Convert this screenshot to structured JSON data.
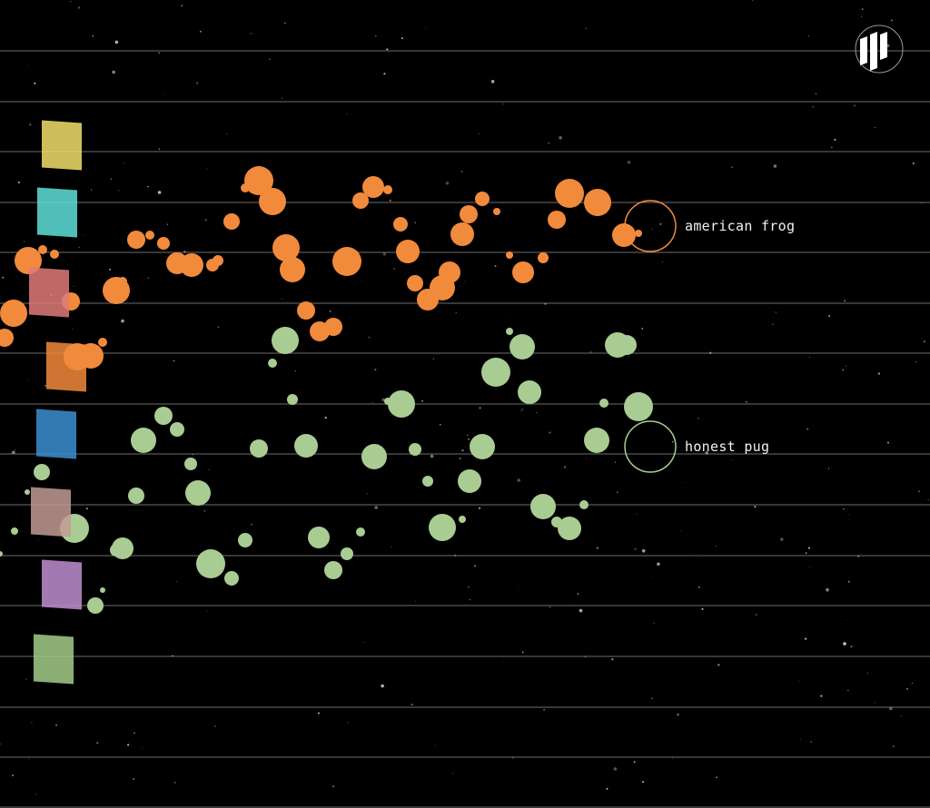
{
  "colors": {
    "background": "#000000",
    "stripe": "#8a8a8a",
    "orange": "#f28a3c",
    "green": "#a9cc92"
  },
  "logo": {
    "icon": "bars-logo-icon"
  },
  "legend": {
    "swatches": [
      {
        "color": "#f1df6b"
      },
      {
        "color": "#5ee0da"
      },
      {
        "color": "#e07a7a"
      },
      {
        "color": "#f28a3c"
      },
      {
        "color": "#3b8fd0"
      },
      {
        "color": "#c29b93"
      },
      {
        "color": "#c08ed0"
      },
      {
        "color": "#a3cc8a"
      }
    ]
  },
  "groups": [
    {
      "label": "american frog",
      "color": "#f28a3c"
    },
    {
      "label": "honest pug",
      "color": "#a9cc92"
    }
  ],
  "chart_data": {
    "type": "scatter",
    "series": [
      {
        "label_ref": "american frog",
        "color": "#f28a3c",
        "values": [
          [
            285,
            199,
            16
          ],
          [
            300,
            222,
            15
          ],
          [
            270,
            207,
            5
          ],
          [
            255,
            244,
            9
          ],
          [
            315,
            273,
            15
          ],
          [
            322,
            297,
            14
          ],
          [
            382,
            288,
            16
          ],
          [
            337,
            342,
            10
          ],
          [
            352,
            365,
            11
          ],
          [
            367,
            360,
            10
          ],
          [
            411,
            206,
            12
          ],
          [
            397,
            221,
            9
          ],
          [
            427,
            209,
            5
          ],
          [
            441,
            247,
            8
          ],
          [
            449,
            277,
            13
          ],
          [
            457,
            312,
            9
          ],
          [
            471,
            330,
            12
          ],
          [
            487,
            317,
            14
          ],
          [
            495,
            300,
            12
          ],
          [
            509,
            258,
            13
          ],
          [
            516,
            236,
            10
          ],
          [
            531,
            219,
            8
          ],
          [
            547,
            233,
            4
          ],
          [
            576,
            300,
            12
          ],
          [
            598,
            284,
            6
          ],
          [
            561,
            281,
            4
          ],
          [
            613,
            242,
            10
          ],
          [
            627,
            213,
            16
          ],
          [
            658,
            223,
            15
          ],
          [
            687,
            259,
            13
          ],
          [
            703,
            257,
            4
          ],
          [
            150,
            264,
            10
          ],
          [
            165,
            259,
            5
          ],
          [
            180,
            268,
            7
          ],
          [
            195,
            290,
            12
          ],
          [
            211,
            292,
            13
          ],
          [
            234,
            292,
            7
          ],
          [
            240,
            287,
            6
          ],
          [
            128,
            320,
            15
          ],
          [
            135,
            310,
            5
          ],
          [
            31,
            287,
            15
          ],
          [
            47,
            275,
            5
          ],
          [
            60,
            280,
            5
          ],
          [
            15,
            345,
            15
          ],
          [
            5,
            372,
            10
          ],
          [
            78,
            332,
            10
          ],
          [
            85,
            393,
            15
          ],
          [
            100,
            392,
            14
          ],
          [
            113,
            377,
            5
          ]
        ]
      },
      {
        "label_ref": "honest pug",
        "color": "#a9cc92",
        "values": [
          [
            314,
            375,
            15
          ],
          [
            300,
            400,
            5
          ],
          [
            322,
            440,
            6
          ],
          [
            285,
            494,
            10
          ],
          [
            337,
            491,
            13
          ],
          [
            180,
            458,
            10
          ],
          [
            195,
            473,
            8
          ],
          [
            158,
            485,
            14
          ],
          [
            210,
            511,
            7
          ],
          [
            218,
            543,
            14
          ],
          [
            150,
            546,
            9
          ],
          [
            135,
            604,
            12
          ],
          [
            128,
            606,
            7
          ],
          [
            82,
            582,
            16
          ],
          [
            46,
            520,
            9
          ],
          [
            30,
            542,
            3
          ],
          [
            16,
            585,
            4
          ],
          [
            0,
            610,
            3
          ],
          [
            105,
            667,
            9
          ],
          [
            113,
            650,
            3
          ],
          [
            232,
            621,
            16
          ],
          [
            255,
            637,
            8
          ],
          [
            270,
            595,
            8
          ],
          [
            351,
            592,
            12
          ],
          [
            367,
            628,
            10
          ],
          [
            382,
            610,
            7
          ],
          [
            397,
            586,
            5
          ],
          [
            442,
            445,
            15
          ],
          [
            427,
            442,
            4
          ],
          [
            412,
            503,
            14
          ],
          [
            457,
            495,
            7
          ],
          [
            471,
            530,
            6
          ],
          [
            487,
            581,
            15
          ],
          [
            509,
            572,
            4
          ],
          [
            517,
            530,
            13
          ],
          [
            531,
            492,
            14
          ],
          [
            546,
            410,
            16
          ],
          [
            561,
            365,
            4
          ],
          [
            575,
            382,
            14
          ],
          [
            583,
            432,
            13
          ],
          [
            598,
            558,
            14
          ],
          [
            613,
            575,
            6
          ],
          [
            627,
            582,
            13
          ],
          [
            643,
            556,
            5
          ],
          [
            657,
            485,
            14
          ],
          [
            665,
            444,
            5
          ],
          [
            680,
            380,
            14
          ],
          [
            690,
            380,
            11
          ],
          [
            703,
            448,
            16
          ]
        ]
      }
    ]
  }
}
